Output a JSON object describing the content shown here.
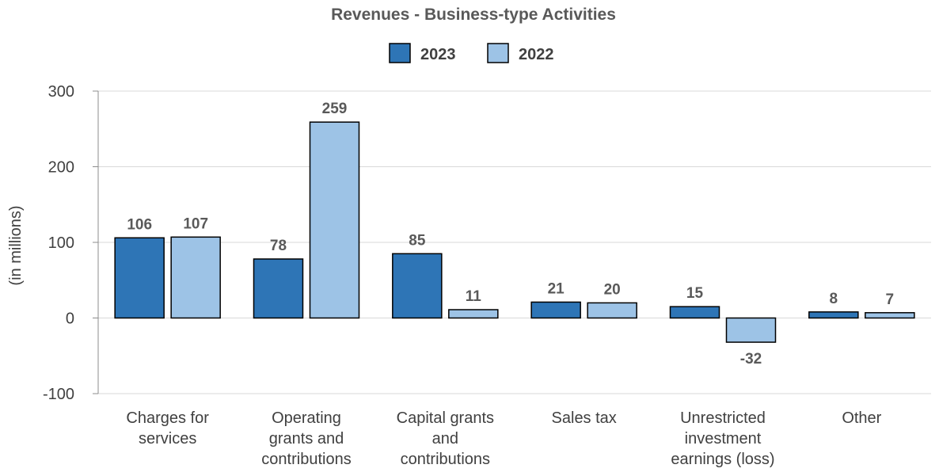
{
  "chart_data": {
    "type": "bar",
    "title": "Revenues - Business-type Activities",
    "ylabel": "(in millions)",
    "xlabel": "",
    "ylim": [
      -100,
      300
    ],
    "yticks": [
      300,
      200,
      100,
      0,
      -100
    ],
    "grid": true,
    "legend_position": "top-center",
    "categories": [
      [
        "Charges for",
        "services"
      ],
      [
        "Operating",
        "grants and",
        "contributions"
      ],
      [
        "Capital grants",
        "and",
        "contributions"
      ],
      [
        "Sales tax"
      ],
      [
        "Unrestricted",
        "investment",
        "earnings (loss)"
      ],
      [
        "Other"
      ]
    ],
    "series": [
      {
        "name": "2023",
        "color": "#2e75b6",
        "values": [
          106,
          78,
          85,
          21,
          15,
          8
        ]
      },
      {
        "name": "2022",
        "color": "#9dc3e6",
        "values": [
          107,
          259,
          11,
          20,
          -32,
          7
        ]
      }
    ]
  }
}
